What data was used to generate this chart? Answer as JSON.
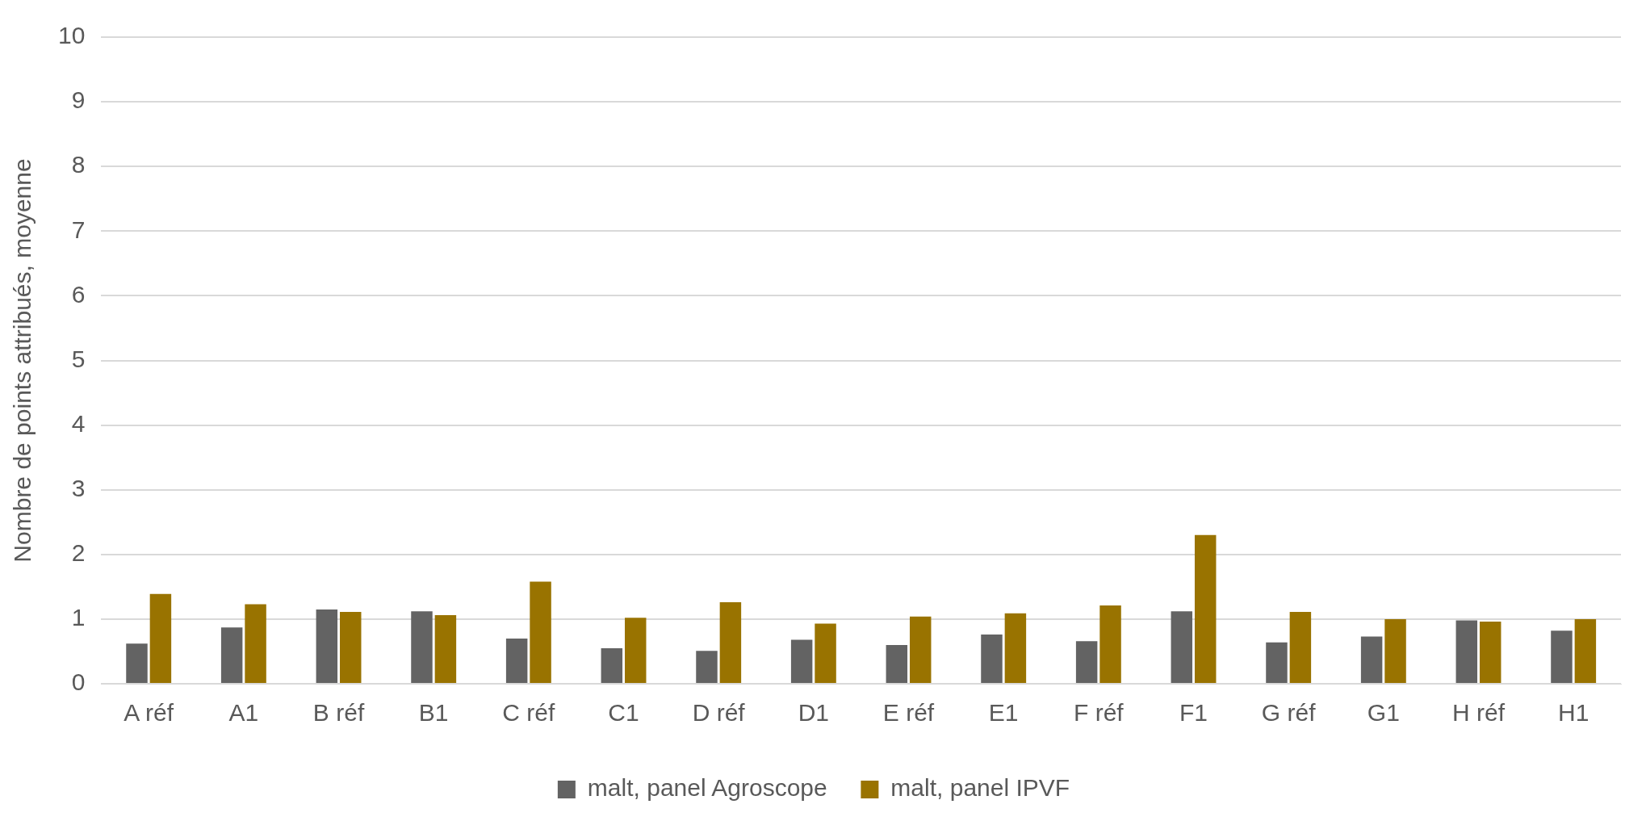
{
  "chart_data": {
    "type": "bar",
    "ylabel": "Nombre de points attribués, moyenne",
    "categories": [
      "A réf",
      "A1",
      "B réf",
      "B1",
      "C réf",
      "C1",
      "D réf",
      "D1",
      "E réf",
      "E1",
      "F réf",
      "F1",
      "G réf",
      "G1",
      "H réf",
      "H1"
    ],
    "series": [
      {
        "name": "malt, panel Agroscope",
        "color": "#636363",
        "values": [
          0.62,
          0.87,
          1.15,
          1.12,
          0.7,
          0.55,
          0.51,
          0.68,
          0.6,
          0.76,
          0.66,
          1.12,
          0.64,
          0.73,
          0.98,
          0.82
        ]
      },
      {
        "name": "malt, panel IPVF",
        "color": "#997300",
        "values": [
          1.39,
          1.23,
          1.11,
          1.06,
          1.58,
          1.02,
          1.26,
          0.93,
          1.04,
          1.09,
          1.21,
          2.3,
          1.11,
          1.0,
          0.96,
          1.0
        ]
      }
    ],
    "ylim": [
      0,
      10
    ],
    "yticks": [
      0,
      1,
      2,
      3,
      4,
      5,
      6,
      7,
      8,
      9,
      10
    ],
    "grid": "y",
    "legend": "bottom"
  }
}
